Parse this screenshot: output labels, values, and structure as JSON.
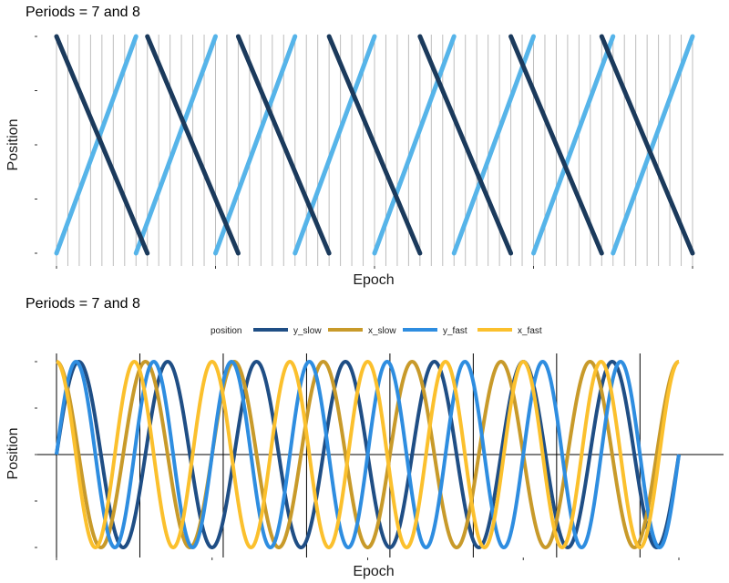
{
  "chart_data": [
    {
      "type": "line",
      "title": "Periods = 7 and 8",
      "xlabel": "Epoch",
      "ylabel": "Position",
      "x_range": [
        0,
        56
      ],
      "y_range": [
        0,
        1
      ],
      "grid": "vertical lines every epoch",
      "series": [
        {
          "period": 7,
          "shape": "rising sawtooth",
          "color": "#56B4E9"
        },
        {
          "period": 8,
          "shape": "falling sawtooth",
          "color": "#1B3A5C"
        }
      ]
    },
    {
      "type": "line",
      "title": "Periods = 7 and 8",
      "xlabel": "Epoch",
      "ylabel": "Position",
      "x_range": [
        0,
        56
      ],
      "y_range": [
        -1,
        1
      ],
      "legend": {
        "title": "position",
        "placement": "top-center",
        "entries": [
          "y_slow",
          "x_slow",
          "y_fast",
          "x_fast"
        ]
      },
      "series": [
        {
          "name": "y_slow",
          "period": 8,
          "function": "sin",
          "color": "#1F4E85"
        },
        {
          "name": "x_slow",
          "period": 8,
          "function": "cos",
          "color": "#C89A2A"
        },
        {
          "name": "y_fast",
          "period": 7,
          "function": "sin",
          "color": "#2E8DE0"
        },
        {
          "name": "x_fast",
          "period": 7,
          "function": "cos",
          "color": "#FBC02D"
        }
      ],
      "reference_lines": {
        "horizontal": 0,
        "vertical_every": 7.5
      }
    }
  ]
}
